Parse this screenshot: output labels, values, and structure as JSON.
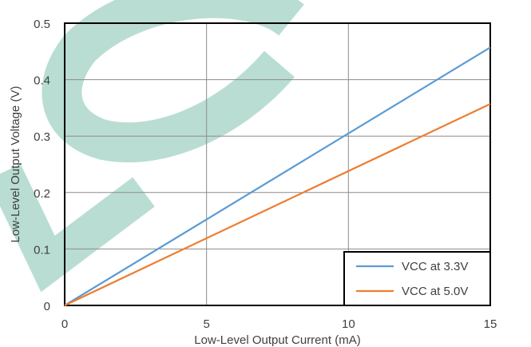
{
  "chart_data": {
    "type": "line",
    "xlabel": "Low-Level Output Current (mA)",
    "ylabel": "Low-Level Output Voltage (V)",
    "xlim": [
      0,
      15
    ],
    "ylim": [
      0,
      0.5
    ],
    "xticks": [
      0,
      5,
      10,
      15
    ],
    "yticks": [
      0,
      0.1,
      0.2,
      0.3,
      0.4,
      0.5
    ],
    "xtick_labels": [
      "0",
      "5",
      "10",
      "15"
    ],
    "ytick_labels": [
      "0",
      "0.1",
      "0.2",
      "0.3",
      "0.4",
      "0.5"
    ],
    "grid": true,
    "legend_position": "bottom-right",
    "series": [
      {
        "name": "VCC at 3.3V",
        "color": "#5b9bd5",
        "x": [
          0,
          15
        ],
        "y": [
          0,
          0.457
        ]
      },
      {
        "name": "VCC at 5.0V",
        "color": "#ed7d31",
        "x": [
          0,
          15
        ],
        "y": [
          0,
          0.357
        ]
      }
    ]
  },
  "watermark": {
    "color": "#b9ddd3"
  }
}
